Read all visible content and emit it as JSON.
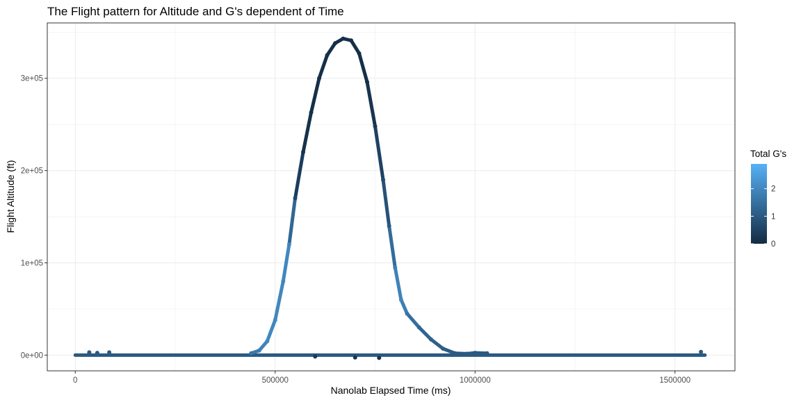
{
  "chart_data": {
    "type": "scatter",
    "title": "The Flight pattern for Altitude and G's dependent of Time",
    "xlabel": "Nanolab Elapsed Time (ms)",
    "ylabel": "Flight Altitude (ft)",
    "xlim": [
      -70000,
      1650000
    ],
    "ylim": [
      -17000,
      360000
    ],
    "x_ticks": [
      0,
      500000,
      1000000,
      1500000
    ],
    "x_tick_labels": [
      "0",
      "500000",
      "1000000",
      "1500000"
    ],
    "y_ticks": [
      0,
      100000,
      200000,
      300000
    ],
    "y_tick_labels": [
      "0e+00",
      "1e+05",
      "2e+05",
      "3e+05"
    ],
    "grid": true,
    "color_scale": {
      "title": "Total G's",
      "min": 0,
      "max": 2.9,
      "ticks": [
        0,
        1,
        2
      ],
      "tick_labels": [
        "0",
        "1",
        "2"
      ],
      "low_color": "#132B43",
      "high_color": "#56B1F7"
    },
    "legend_position": "right",
    "series": [
      {
        "points": [
          {
            "x": 440000,
            "y": 2000,
            "g": 1.6
          },
          {
            "x": 460000,
            "y": 5000,
            "g": 1.8
          },
          {
            "x": 480000,
            "y": 15000,
            "g": 2.0
          },
          {
            "x": 500000,
            "y": 38000,
            "g": 2.0
          },
          {
            "x": 520000,
            "y": 80000,
            "g": 2.0
          },
          {
            "x": 535000,
            "y": 120000,
            "g": 2.0
          },
          {
            "x": 550000,
            "y": 170000,
            "g": 0.6
          },
          {
            "x": 570000,
            "y": 220000,
            "g": 0.2
          },
          {
            "x": 590000,
            "y": 263000,
            "g": 0.1
          },
          {
            "x": 610000,
            "y": 300000,
            "g": 0.1
          },
          {
            "x": 630000,
            "y": 325000,
            "g": 0.1
          },
          {
            "x": 650000,
            "y": 338000,
            "g": 0.1
          },
          {
            "x": 670000,
            "y": 343000,
            "g": 0.1
          },
          {
            "x": 690000,
            "y": 341000,
            "g": 0.1
          },
          {
            "x": 710000,
            "y": 327000,
            "g": 0.1
          },
          {
            "x": 730000,
            "y": 296000,
            "g": 0.1
          },
          {
            "x": 750000,
            "y": 248000,
            "g": 0.3
          },
          {
            "x": 770000,
            "y": 190000,
            "g": 0.7
          },
          {
            "x": 785000,
            "y": 140000,
            "g": 1.0
          },
          {
            "x": 800000,
            "y": 95000,
            "g": 1.8
          },
          {
            "x": 815000,
            "y": 60000,
            "g": 2.0
          },
          {
            "x": 830000,
            "y": 45000,
            "g": 1.6
          },
          {
            "x": 860000,
            "y": 30000,
            "g": 1.3
          },
          {
            "x": 890000,
            "y": 17000,
            "g": 1.2
          },
          {
            "x": 920000,
            "y": 7000,
            "g": 1.1
          },
          {
            "x": 950000,
            "y": 2000,
            "g": 1.0
          },
          {
            "x": 980000,
            "y": 1500,
            "g": 1.0
          },
          {
            "x": 1000000,
            "y": 2500,
            "g": 1.0
          },
          {
            "x": 1030000,
            "y": 2000,
            "g": 1.0
          },
          {
            "x": 35000,
            "y": 3000,
            "g": 1.0
          },
          {
            "x": 55000,
            "y": 2500,
            "g": 1.0
          },
          {
            "x": 85000,
            "y": 3000,
            "g": 1.0
          },
          {
            "x": 1565000,
            "y": 3500,
            "g": 1.0
          },
          {
            "x": 600000,
            "y": -1500,
            "g": 0.3
          },
          {
            "x": 700000,
            "y": -2500,
            "g": 0.2
          },
          {
            "x": 760000,
            "y": -3000,
            "g": 0.2
          }
        ],
        "ground_band": {
          "x_start": 0,
          "x_end": 1575000,
          "y": 0,
          "g": 1.0
        }
      }
    ]
  }
}
